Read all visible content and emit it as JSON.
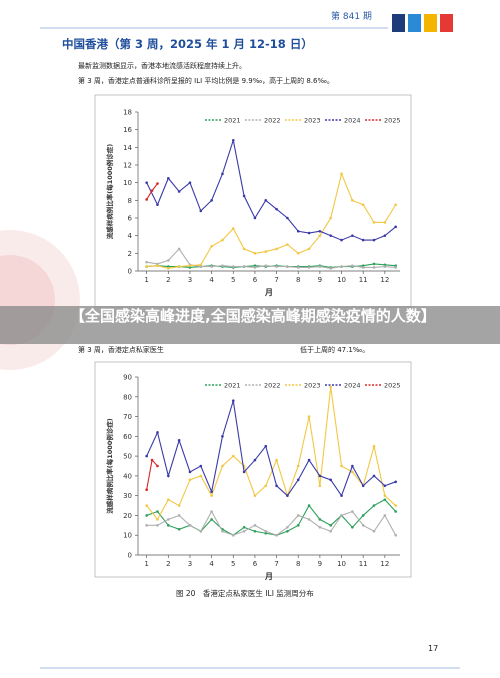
{
  "header": {
    "issue": "第 841 期"
  },
  "title": "中国香港（第 3 周，2025 年 1 月 12-18 日）",
  "paragraphs": [
    "最新监测数据显示，香港本地流感活跃程度持续上升。",
    "第 3 周，香港定点普通科诊所呈报的 ILI 平均比例是 9.9‰，高于上周的 8.6‰。"
  ],
  "banner": "【全国感染高峰进度,全国感染高峰期感染疫情的人数】",
  "paragraph2": {
    "start": "第 3 周，香港定点私家医生",
    "end": "低于上周的 47.1‰。"
  },
  "caption": "图 20　香港定点私家医生 ILI 监测周分布",
  "page_number": "17",
  "chart_data": [
    {
      "type": "line",
      "y_label": "流感样病例比率(每1000例诊症)",
      "x_label": "月",
      "x": [
        1,
        1.5,
        2,
        2.5,
        3,
        3.5,
        4,
        4.5,
        5,
        5.5,
        6,
        6.5,
        7,
        7.5,
        8,
        8.5,
        9,
        9.5,
        10,
        10.5,
        11,
        11.5,
        12,
        12.5
      ],
      "xlim": [
        0.6,
        12.7
      ],
      "xticks": [
        1,
        2,
        3,
        4,
        5,
        6,
        7,
        8,
        9,
        10,
        11,
        12
      ],
      "ylim": [
        0,
        18
      ],
      "yticks": [
        0,
        2,
        4,
        6,
        8,
        10,
        12,
        14,
        16,
        18
      ],
      "series": [
        {
          "name": "2021",
          "color": "#2ca05a",
          "values": [
            0.5,
            0.6,
            0.5,
            0.5,
            0.4,
            0.5,
            0.6,
            0.5,
            0.4,
            0.5,
            0.6,
            0.5,
            0.6,
            0.5,
            0.5,
            0.5,
            0.6,
            0.4,
            0.5,
            0.5,
            0.6,
            0.8,
            0.7,
            0.6
          ]
        },
        {
          "name": "2022",
          "color": "#b0b0b0",
          "values": [
            1,
            0.8,
            1.2,
            2.5,
            0.7,
            0.5,
            0.5,
            0.6,
            0.5,
            0.5,
            0.4,
            0.6,
            0.5,
            0.5,
            0.4,
            0.4,
            0.5,
            0.3,
            0.5,
            0.6,
            0.4,
            0.4,
            0.5,
            0.4
          ]
        },
        {
          "name": "2023",
          "color": "#f2c744",
          "values": [
            0.5,
            0.6,
            0.3,
            0.5,
            0.6,
            0.7,
            2.8,
            3.5,
            4.8,
            2.5,
            2,
            2.2,
            2.5,
            3,
            2,
            2.5,
            4,
            6,
            11,
            8,
            7.5,
            5.5,
            5.5,
            7.5
          ]
        },
        {
          "name": "2024",
          "color": "#3a3aa8",
          "values": [
            10,
            7.5,
            10.5,
            9,
            10,
            6.8,
            8,
            11,
            14.8,
            8.5,
            6,
            8,
            7,
            6,
            4.5,
            4.3,
            4.5,
            4,
            3.5,
            4,
            3.5,
            3.5,
            4,
            5
          ]
        },
        {
          "name": "2025",
          "color": "#d62828",
          "x": [
            1,
            1.25,
            1.5
          ],
          "values": [
            8.1,
            9.1,
            9.9
          ]
        }
      ]
    },
    {
      "type": "line",
      "y_label": "流感样病例比率(每1000例诊症)",
      "x_label": "月",
      "x": [
        1,
        1.5,
        2,
        2.5,
        3,
        3.5,
        4,
        4.5,
        5,
        5.5,
        6,
        6.5,
        7,
        7.5,
        8,
        8.5,
        9,
        9.5,
        10,
        10.5,
        11,
        11.5,
        12,
        12.5
      ],
      "xlim": [
        0.6,
        12.7
      ],
      "xticks": [
        1,
        2,
        3,
        4,
        5,
        6,
        7,
        8,
        9,
        10,
        11,
        12
      ],
      "ylim": [
        0,
        90
      ],
      "yticks": [
        0,
        10,
        20,
        30,
        40,
        50,
        60,
        70,
        80,
        90
      ],
      "series": [
        {
          "name": "2021",
          "color": "#2ca05a",
          "values": [
            20,
            22,
            15,
            13,
            15,
            12,
            18,
            13,
            10,
            14,
            12,
            11,
            10,
            12,
            15,
            25,
            18,
            15,
            20,
            14,
            20,
            25,
            28,
            22
          ]
        },
        {
          "name": "2022",
          "color": "#b0b0b0",
          "values": [
            15,
            15,
            18,
            20,
            15,
            12,
            22,
            12,
            10,
            12,
            15,
            12,
            10,
            14,
            20,
            18,
            14,
            12,
            20,
            22,
            15,
            12,
            20,
            10
          ]
        },
        {
          "name": "2023",
          "color": "#f2c744",
          "values": [
            25,
            18,
            28,
            25,
            38,
            40,
            30,
            45,
            50,
            45,
            30,
            35,
            48,
            30,
            45,
            70,
            35,
            85,
            45,
            42,
            35,
            55,
            30,
            25
          ]
        },
        {
          "name": "2024",
          "color": "#3a3aa8",
          "values": [
            50,
            62,
            40,
            58,
            42,
            45,
            32,
            60,
            78,
            42,
            48,
            55,
            35,
            30,
            38,
            48,
            40,
            38,
            30,
            45,
            35,
            40,
            35,
            37
          ]
        },
        {
          "name": "2025",
          "color": "#d62828",
          "x": [
            1,
            1.25,
            1.5
          ],
          "values": [
            33,
            48,
            45
          ]
        }
      ]
    }
  ]
}
